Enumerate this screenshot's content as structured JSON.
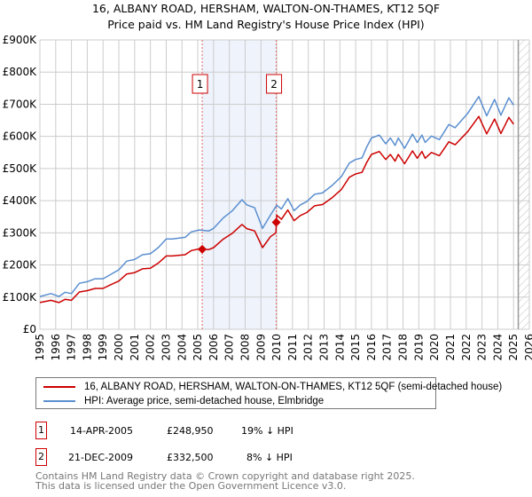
{
  "title": "16, ALBANY ROAD, HERSHAM, WALTON-ON-THAMES, KT12 5QF",
  "subtitle": "Price paid vs. HM Land Registry's House Price Index (HPI)",
  "colors": {
    "property": "#cc0000",
    "hpi": "#5b8fd0",
    "grid": "#cccccc",
    "band": "#eef3fc"
  },
  "chart_data": {
    "type": "line",
    "title": "16, ALBANY ROAD, HERSHAM, WALTON-ON-THAMES, KT12 5QF",
    "subtitle": "Price paid vs. HM Land Registry's House Price Index (HPI)",
    "xlim": [
      1995,
      2026
    ],
    "ylim": [
      0,
      900000
    ],
    "grid": true,
    "y_ticks": [
      {
        "v": 0,
        "label": "£0"
      },
      {
        "v": 100000,
        "label": "£100K"
      },
      {
        "v": 200000,
        "label": "£200K"
      },
      {
        "v": 300000,
        "label": "£300K"
      },
      {
        "v": 400000,
        "label": "£400K"
      },
      {
        "v": 500000,
        "label": "£500K"
      },
      {
        "v": 600000,
        "label": "£600K"
      },
      {
        "v": 700000,
        "label": "£700K"
      },
      {
        "v": 800000,
        "label": "£800K"
      },
      {
        "v": 900000,
        "label": "£900K"
      }
    ],
    "x_ticks": [
      "1995",
      "1996",
      "1997",
      "1998",
      "1999",
      "2000",
      "2001",
      "2002",
      "2003",
      "2004",
      "2005",
      "2006",
      "2007",
      "2008",
      "2009",
      "2010",
      "2011",
      "2012",
      "2013",
      "2014",
      "2015",
      "2016",
      "2017",
      "2018",
      "2019",
      "2020",
      "2021",
      "2022",
      "2023",
      "2024",
      "2025",
      "2026"
    ],
    "forecast_start": 2025.3,
    "series": [
      {
        "name": "16, ALBANY ROAD, HERSHAM, WALTON-ON-THAMES, KT12 5QF (semi-detached house)",
        "color": "#cc0000",
        "x": [
          1995.0,
          1995.7,
          1996.2,
          1996.6,
          1997.0,
          1997.5,
          1998.0,
          1998.5,
          1999.0,
          1999.5,
          2000.0,
          2000.5,
          2001.0,
          2001.5,
          2002.0,
          2002.5,
          2003.0,
          2003.4,
          2004.2,
          2004.6,
          2005.1,
          2005.7,
          2006.0,
          2006.6,
          2007.2,
          2007.8,
          2008.1,
          2008.6,
          2009.1,
          2009.6,
          2009.95,
          2010.0,
          2010.3,
          2010.7,
          2011.1,
          2011.5,
          2011.9,
          2012.4,
          2012.9,
          2013.5,
          2014.1,
          2014.6,
          2015.0,
          2015.4,
          2015.7,
          2016.0,
          2016.5,
          2016.9,
          2017.2,
          2017.5,
          2017.7,
          2018.1,
          2018.6,
          2018.9,
          2019.2,
          2019.4,
          2019.8,
          2020.3,
          2020.9,
          2021.3,
          2022.1,
          2022.8,
          2023.3,
          2023.8,
          2024.2,
          2024.7,
          2025.0
        ],
        "y": [
          83000,
          90000,
          83000,
          93000,
          90000,
          116000,
          120000,
          127000,
          127000,
          139000,
          150000,
          172000,
          176000,
          188000,
          190000,
          206000,
          228000,
          228000,
          232000,
          245000,
          250000,
          248000,
          254000,
          280000,
          299000,
          326000,
          313000,
          306000,
          254000,
          288000,
          300000,
          355000,
          342000,
          371000,
          338000,
          354000,
          363000,
          384000,
          388000,
          409000,
          435000,
          473000,
          483000,
          488000,
          519000,
          544000,
          553000,
          528000,
          544000,
          523000,
          544000,
          515000,
          555000,
          532000,
          553000,
          532000,
          550000,
          540000,
          583000,
          574000,
          615000,
          662000,
          608000,
          654000,
          609000,
          659000,
          638000
        ]
      },
      {
        "name": "HPI: Average price, semi-detached house, Elmbridge",
        "color": "#5b8fd0",
        "x": [
          1995.0,
          1995.7,
          1996.2,
          1996.6,
          1997.0,
          1997.5,
          1998.0,
          1998.5,
          1999.0,
          1999.5,
          2000.0,
          2000.5,
          2001.0,
          2001.5,
          2002.0,
          2002.5,
          2003.0,
          2003.4,
          2004.2,
          2004.6,
          2005.1,
          2005.7,
          2006.0,
          2006.6,
          2007.2,
          2007.8,
          2008.1,
          2008.6,
          2009.1,
          2009.6,
          2010.0,
          2010.3,
          2010.7,
          2011.1,
          2011.5,
          2011.9,
          2012.4,
          2012.9,
          2013.5,
          2014.1,
          2014.6,
          2015.0,
          2015.4,
          2015.7,
          2016.0,
          2016.5,
          2016.9,
          2017.2,
          2017.5,
          2017.7,
          2018.1,
          2018.6,
          2018.9,
          2019.2,
          2019.4,
          2019.8,
          2020.3,
          2020.9,
          2021.3,
          2022.1,
          2022.8,
          2023.3,
          2023.8,
          2024.2,
          2024.7,
          2025.0
        ],
        "y": [
          102000,
          111000,
          102000,
          115000,
          111000,
          143000,
          148000,
          157000,
          157000,
          171000,
          185000,
          212000,
          217000,
          232000,
          235000,
          254000,
          281000,
          281000,
          286000,
          303000,
          309000,
          306000,
          314000,
          346000,
          369000,
          403000,
          387000,
          378000,
          314000,
          355000,
          386000,
          374000,
          406000,
          369000,
          387000,
          397000,
          420000,
          424000,
          447000,
          475000,
          517000,
          528000,
          533000,
          567000,
          595000,
          604000,
          577000,
          595000,
          572000,
          595000,
          563000,
          607000,
          581000,
          604000,
          581000,
          601000,
          590000,
          637000,
          627000,
          672000,
          724000,
          664000,
          715000,
          666000,
          720000,
          697000
        ]
      }
    ],
    "sales": [
      {
        "label": "1",
        "x": 2005.28,
        "date": "14-APR-2005",
        "price": 248950,
        "price_label": "£248,950",
        "hpi_diff": "19% ↓ HPI"
      },
      {
        "label": "2",
        "x": 2009.97,
        "date": "21-DEC-2009",
        "price": 332500,
        "price_label": "£332,500",
        "hpi_diff": "8% ↓ HPI"
      }
    ]
  },
  "legend": {
    "property_label": "16, ALBANY ROAD, HERSHAM, WALTON-ON-THAMES, KT12 5QF (semi-detached house)",
    "hpi_label": "HPI: Average price, semi-detached house, Elmbridge"
  },
  "footer": {
    "line1": "Contains HM Land Registry data © Crown copyright and database right 2025.",
    "line2": "This data is licensed under the Open Government Licence v3.0."
  }
}
